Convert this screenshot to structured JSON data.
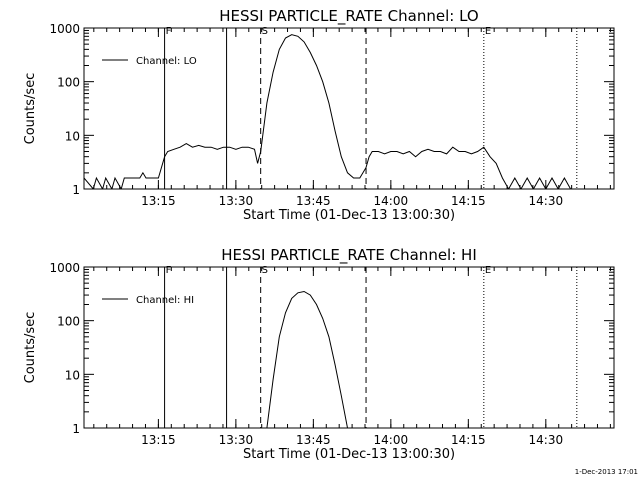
{
  "footer_timestamp": "1-Dec-2013 17:01",
  "chart_data": [
    {
      "type": "line",
      "title": "HESSI PARTICLE_RATE Channel: LO",
      "xlabel": "Start Time (01-Dec-13 13:00:30)",
      "ylabel": "Counts/sec",
      "yscale": "log",
      "ylim": [
        1,
        1000
      ],
      "xlim": [
        13.01,
        14.72
      ],
      "xticks": [
        13.25,
        13.5,
        13.75,
        14.0,
        14.25,
        14.5
      ],
      "xtick_labels": [
        "13:15",
        "13:30",
        "13:45",
        "14:00",
        "14:15",
        "14:30"
      ],
      "yticks": [
        1,
        10,
        100,
        1000
      ],
      "ytick_labels": [
        "1",
        "10",
        "100",
        "1000"
      ],
      "legend": {
        "label": "Channel: LO",
        "placement": "top-left"
      },
      "markers": [
        {
          "label": "F",
          "x": 13.27,
          "style": "solid"
        },
        {
          "label": "",
          "x": 13.47,
          "style": "solid"
        },
        {
          "label": "S",
          "x": 13.58,
          "style": "dashed"
        },
        {
          "label": "",
          "x": 13.92,
          "style": "dashed"
        },
        {
          "label": "E",
          "x": 14.3,
          "style": "dotted"
        },
        {
          "label": "",
          "x": 14.6,
          "style": "dotted"
        }
      ],
      "series": [
        {
          "x": [
            13.01,
            13.04,
            13.05,
            13.07,
            13.08,
            13.1,
            13.11,
            13.13,
            13.14,
            13.16,
            13.18,
            13.19,
            13.2,
            13.21,
            13.22,
            13.24,
            13.25,
            13.27,
            13.28,
            13.3,
            13.32,
            13.34,
            13.36,
            13.38,
            13.4,
            13.42,
            13.44,
            13.46,
            13.48,
            13.5,
            13.52,
            13.54,
            13.56,
            13.57,
            13.58,
            13.6,
            13.62,
            13.64,
            13.66,
            13.68,
            13.7,
            13.72,
            13.74,
            13.76,
            13.78,
            13.8,
            13.82,
            13.84,
            13.86,
            13.88,
            13.9,
            13.92,
            13.93,
            13.94,
            13.96,
            13.98,
            14.0,
            14.02,
            14.04,
            14.06,
            14.08,
            14.1,
            14.12,
            14.14,
            14.16,
            14.18,
            14.2,
            14.22,
            14.24,
            14.26,
            14.28,
            14.3,
            14.32,
            14.34,
            14.36,
            14.38,
            14.4,
            14.42,
            14.44,
            14.46,
            14.48,
            14.5,
            14.52,
            14.54,
            14.56,
            14.58,
            14.6
          ],
          "y": [
            1.6,
            1,
            1.6,
            1,
            1.6,
            1,
            1.6,
            1,
            1.6,
            1.6,
            1.6,
            1.6,
            2,
            1.6,
            1.6,
            1.6,
            1.6,
            4,
            5,
            5.5,
            6,
            7,
            6,
            6.5,
            6,
            6,
            5.5,
            6,
            6,
            5.5,
            6,
            6,
            5.5,
            3,
            5,
            40,
            150,
            400,
            650,
            750,
            700,
            550,
            350,
            200,
            100,
            40,
            12,
            4,
            2,
            1.6,
            1.6,
            2.5,
            4,
            5,
            5,
            4.5,
            5,
            5,
            4.5,
            5,
            4,
            5,
            5.5,
            5,
            5,
            4.5,
            6,
            5,
            5,
            4.5,
            5,
            6,
            4,
            3,
            1.6,
            1,
            1.6,
            1,
            1.6,
            1,
            1.6,
            1,
            1.6,
            1,
            1.6,
            1,
            1
          ]
        }
      ]
    },
    {
      "type": "line",
      "title": "HESSI PARTICLE_RATE Channel: HI",
      "xlabel": "Start Time (01-Dec-13 13:00:30)",
      "ylabel": "Counts/sec",
      "yscale": "log",
      "ylim": [
        1,
        1000
      ],
      "xlim": [
        13.01,
        14.72
      ],
      "xticks": [
        13.25,
        13.5,
        13.75,
        14.0,
        14.25,
        14.5
      ],
      "xtick_labels": [
        "13:15",
        "13:30",
        "13:45",
        "14:00",
        "14:15",
        "14:30"
      ],
      "yticks": [
        1,
        10,
        100,
        1000
      ],
      "ytick_labels": [
        "1",
        "10",
        "100",
        "1000"
      ],
      "legend": {
        "label": "Channel: HI",
        "placement": "top-left"
      },
      "markers": [
        {
          "label": "F",
          "x": 13.27,
          "style": "solid"
        },
        {
          "label": "",
          "x": 13.47,
          "style": "solid"
        },
        {
          "label": "S",
          "x": 13.58,
          "style": "dashed"
        },
        {
          "label": "",
          "x": 13.92,
          "style": "dashed"
        },
        {
          "label": "E",
          "x": 14.3,
          "style": "dotted"
        },
        {
          "label": "",
          "x": 14.6,
          "style": "dotted"
        }
      ],
      "series": [
        {
          "x": [
            13.6,
            13.62,
            13.64,
            13.66,
            13.68,
            13.7,
            13.72,
            13.74,
            13.76,
            13.78,
            13.8,
            13.82,
            13.84,
            13.86
          ],
          "y": [
            1,
            8,
            50,
            140,
            260,
            330,
            350,
            300,
            200,
            110,
            50,
            15,
            4,
            1
          ]
        }
      ]
    }
  ]
}
